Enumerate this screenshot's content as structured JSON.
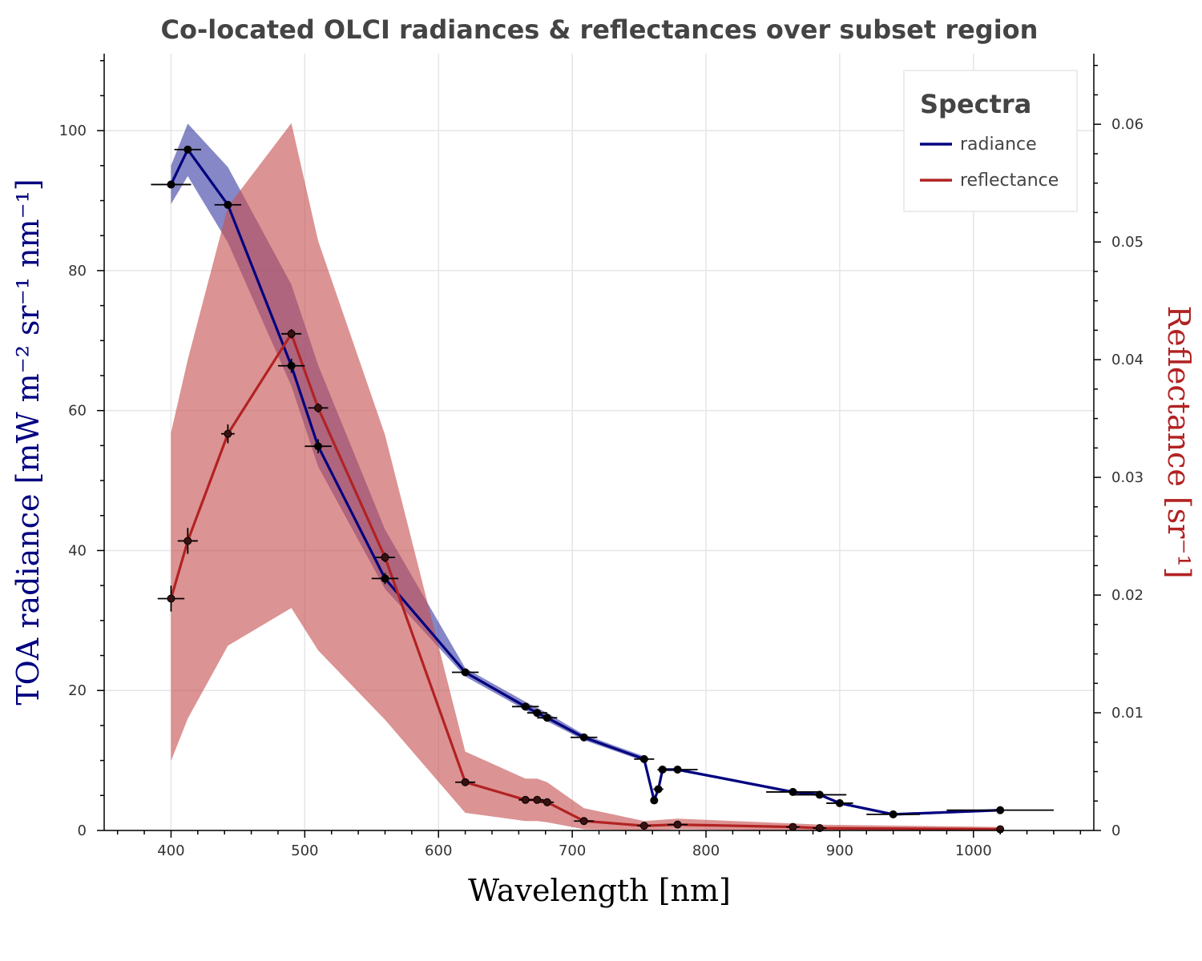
{
  "chart_data": {
    "type": "line",
    "title": "Co-located OLCI radiances & reflectances over subset region",
    "xlabel": "Wavelength [nm]",
    "ylabel_left": "TOA radiance [mW m⁻² sr⁻¹ nm⁻¹]",
    "ylabel_right": "Reflectance [sr⁻¹]",
    "xlim": [
      350,
      1090
    ],
    "ylim_left": [
      0,
      111
    ],
    "ylim_right": [
      0,
      0.066
    ],
    "x_ticks": [
      400,
      500,
      600,
      700,
      800,
      900,
      1000
    ],
    "y_left_ticks": [
      0,
      20,
      40,
      60,
      80,
      100
    ],
    "y_right_ticks": [
      0,
      0.01,
      0.02,
      0.03,
      0.04,
      0.05,
      0.06
    ],
    "y_right_tick_labels": [
      "0",
      "0.01",
      "0.02",
      "0.03",
      "0.04",
      "0.05",
      "0.06"
    ],
    "grid": true,
    "legend": {
      "title": "Spectra",
      "position": "top-right"
    },
    "series": [
      {
        "name": "radiance",
        "axis": "left",
        "color": "#000080",
        "band_color": "#3b3ea3",
        "x": [
          400,
          412.5,
          442.5,
          490,
          510,
          560,
          620,
          665,
          673.75,
          681.25,
          708.75,
          753.75,
          761.25,
          764.375,
          767.5,
          778.75,
          865,
          885,
          900,
          940,
          1020
        ],
        "y": [
          92.3,
          97.3,
          89.4,
          66.4,
          54.9,
          36.0,
          22.6,
          17.7,
          16.8,
          16.1,
          13.3,
          10.2,
          4.3,
          5.9,
          8.7,
          8.7,
          5.5,
          5.1,
          3.9,
          2.3,
          2.9
        ],
        "band_low": [
          89.5,
          93.5,
          84.0,
          63.5,
          52.0,
          34.5,
          22.0,
          17.2,
          16.3,
          15.6,
          12.9,
          9.9,
          4.1,
          5.7,
          8.5,
          8.5,
          5.3,
          4.9,
          3.7,
          2.1,
          2.7
        ],
        "band_high": [
          95.0,
          101.0,
          94.8,
          78.0,
          66.5,
          43.0,
          23.2,
          18.4,
          17.5,
          16.8,
          13.7,
          10.6,
          4.5,
          6.1,
          8.9,
          8.9,
          5.7,
          5.3,
          4.1,
          2.5,
          3.1
        ],
        "x_err": [
          15,
          10,
          10,
          10,
          10,
          10,
          10,
          10,
          7.5,
          7.5,
          10,
          7.5,
          2.5,
          3.75,
          3.75,
          15,
          20,
          20,
          10,
          20,
          40
        ],
        "y_err": [
          0,
          0,
          0,
          1.0,
          1.0,
          0.8,
          0,
          0,
          0,
          0,
          0,
          0,
          0,
          0,
          0,
          0,
          0,
          0,
          0,
          0,
          0
        ]
      },
      {
        "name": "reflectance",
        "axis": "right",
        "color": "#b22222",
        "band_color": "#c65050",
        "x": [
          400,
          412.5,
          442.5,
          490,
          510,
          560,
          620,
          665,
          673.75,
          681.25,
          708.75,
          753.75,
          778.75,
          865,
          885,
          1020
        ],
        "y": [
          0.0197,
          0.0246,
          0.0337,
          0.0422,
          0.0359,
          0.0232,
          0.0041,
          0.0026,
          0.0026,
          0.0024,
          0.0008,
          0.0004,
          0.0005,
          0.0003,
          0.0002,
          0.0001
        ],
        "band_low": [
          0.0059,
          0.0095,
          0.0157,
          0.0189,
          0.0153,
          0.0094,
          0.0015,
          0.0008,
          0.0008,
          0.0007,
          0.0001,
          0.0,
          0.0001,
          0.0,
          0.0,
          0.0
        ],
        "band_high": [
          0.0338,
          0.04,
          0.053,
          0.0601,
          0.0501,
          0.0336,
          0.0067,
          0.0044,
          0.0044,
          0.0041,
          0.0019,
          0.0008,
          0.001,
          0.0006,
          0.0005,
          0.0003
        ],
        "x_err": [
          10,
          7.5,
          5,
          7.5,
          7.5,
          7.5,
          7.5,
          5,
          5,
          5,
          7.5,
          5,
          7.5,
          5,
          5,
          0
        ],
        "y_err": [
          0.0011,
          0.0011,
          0.0008,
          0.0004,
          0.0004,
          0.0004,
          0,
          0,
          0,
          0,
          0,
          0,
          0,
          0,
          0,
          0
        ]
      }
    ]
  }
}
